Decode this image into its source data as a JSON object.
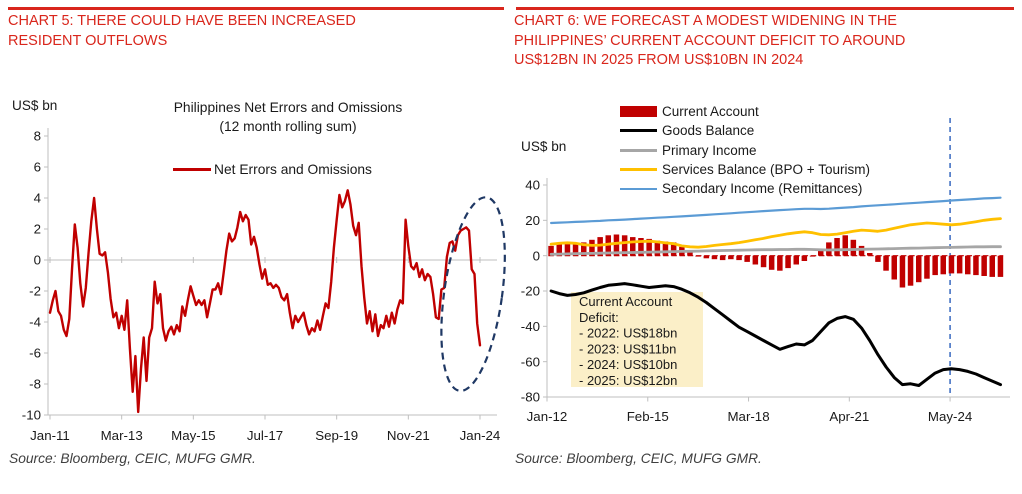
{
  "left_panel": {
    "title_lines": [
      "CHART 5: THERE COULD HAVE BEEN INCREASED",
      "RESIDENT OUTFLOWS"
    ],
    "source": "Source: Bloomberg, CEIC, MUFG GMR."
  },
  "right_panel": {
    "title_lines": [
      "CHART 6: WE FORECAST A MODEST WIDENING IN THE",
      "PHILIPPINES’ CURRENT ACCOUNT DEFICIT TO AROUND",
      "US$12BN IN 2025 FROM US$10BN IN 2024"
    ],
    "source": "Source: Bloomberg, CEIC, MUFG GMR."
  },
  "colors": {
    "heading_red": "#d9261c",
    "series_red": "#c00000",
    "black": "#000000",
    "gray": "#a6a6a6",
    "yellow": "#ffc000",
    "light_blue": "#5b9bd5",
    "divider_blue": "#4472c4",
    "navy_ellipse": "#1f3864",
    "axis_gray": "#bfbfbf",
    "note_bg": "#fbefc8"
  },
  "chart_data": [
    {
      "type": "line",
      "title": "Philippines Net Errors and Omissions",
      "subtitle": "(12 month rolling sum)",
      "unit_label": "US$ bn",
      "legend": [
        {
          "name": "Net Errors and Omissions",
          "color": "#c00000",
          "marker": "line"
        }
      ],
      "x_start": "Jan-11",
      "x_frequency": "monthly",
      "x_tick_labels": [
        "Jan-11",
        "Mar-13",
        "May-15",
        "Jul-17",
        "Sep-19",
        "Nov-21",
        "Jan-24"
      ],
      "x_tick_month_positions": [
        0,
        26,
        52,
        78,
        104,
        130,
        156
      ],
      "y_ticks": [
        8,
        6,
        4,
        2,
        0,
        -2,
        -4,
        -6,
        -8,
        -10
      ],
      "ylim": [
        -10,
        8
      ],
      "grid": "zero-line-only",
      "series": [
        {
          "name": "Net Errors and Omissions",
          "color": "#c00000",
          "values": [
            -3.4,
            -2.6,
            -2.0,
            -3.3,
            -3.6,
            -4.5,
            -4.9,
            -3.8,
            -0.5,
            2.3,
            0.8,
            -1.5,
            -3.0,
            -1.8,
            0.5,
            2.5,
            4.0,
            2.0,
            0.4,
            0.3,
            0.5,
            -0.8,
            -2.5,
            -3.7,
            -3.4,
            -4.4,
            -3.6,
            -4.5,
            -2.6,
            -5.7,
            -8.5,
            -6.2,
            -9.8,
            -7.0,
            -5.0,
            -7.8,
            -5.0,
            -4.4,
            -1.4,
            -2.8,
            -2.2,
            -4.4,
            -5.2,
            -4.6,
            -4.3,
            -4.8,
            -4.2,
            -4.6,
            -3.0,
            -3.6,
            -2.6,
            -1.7,
            -2.3,
            -2.9,
            -2.6,
            -2.9,
            -2.6,
            -3.7,
            -2.8,
            -1.9,
            -1.9,
            -1.5,
            -2.2,
            -0.8,
            0.6,
            1.7,
            1.2,
            1.4,
            2.1,
            3.1,
            2.5,
            2.9,
            2.6,
            1.0,
            1.5,
            0.8,
            -0.3,
            -1.2,
            -0.6,
            -1.6,
            -1.5,
            -1.8,
            -1.6,
            -1.8,
            -2.4,
            -2.6,
            -2.2,
            -3.4,
            -4.4,
            -3.6,
            -4.0,
            -3.7,
            -3.4,
            -4.2,
            -4.8,
            -4.4,
            -4.6,
            -3.9,
            -4.5,
            -3.6,
            -2.8,
            -3.1,
            -1.4,
            0.8,
            2.6,
            4.2,
            3.4,
            3.8,
            4.5,
            3.6,
            2.2,
            1.6,
            2.4,
            -0.4,
            -2.4,
            -4.1,
            -3.3,
            -4.6,
            -3.5,
            -4.9,
            -4.2,
            -4.4,
            -3.6,
            -4.3,
            -3.4,
            -4.1,
            -3.2,
            -2.6,
            -2.8,
            2.6,
            0.9,
            -0.4,
            -0.6,
            -0.2,
            -1.1,
            -0.6,
            -1.3,
            -0.9,
            -1.1,
            -2.2,
            -3.7,
            -3.8,
            -1.9,
            -1.8,
            0.2,
            1.1,
            1.2,
            0.6,
            1.6,
            1.9,
            2.0,
            2.1,
            1.9,
            -0.6,
            -0.9,
            -4.1,
            -5.5
          ]
        }
      ],
      "annotation_ellipse": {
        "meaning": "highlight of recent resident-outflow swing",
        "center_month": 153.5,
        "center_value": -2.2,
        "radius_months": 10.5,
        "radius_value": 6.3,
        "tilt_deg": 8,
        "color": "#1f3864"
      }
    },
    {
      "type": "combo",
      "unit_label": "US$ bn",
      "x_start": "Jan-12",
      "x_frequency": "quarterly",
      "x_tick_labels": [
        "Jan-12",
        "Feb-15",
        "Mar-18",
        "Apr-21",
        "May-24"
      ],
      "x_tick_month_positions": [
        0,
        37,
        74,
        111,
        148
      ],
      "x_month_span": 170,
      "y_ticks": [
        40,
        20,
        0,
        -20,
        -40,
        -60,
        -80
      ],
      "ylim": [
        -80,
        40
      ],
      "legend": [
        {
          "name": "Current Account",
          "color": "#c00000",
          "marker": "bar"
        },
        {
          "name": "Goods Balance",
          "color": "#000000",
          "marker": "line"
        },
        {
          "name": "Primary Income",
          "color": "#a6a6a6",
          "marker": "line"
        },
        {
          "name": "Services Balance (BPO + Tourism)",
          "color": "#ffc000",
          "marker": "line"
        },
        {
          "name": "Secondary Income (Remittances)",
          "color": "#5b9bd5",
          "marker": "thin-line"
        }
      ],
      "bar_series": {
        "name": "Current Account",
        "color": "#c00000",
        "values": [
          5.5,
          6.5,
          7.0,
          6.5,
          7.5,
          9.0,
          10.5,
          11.5,
          12.0,
          11.5,
          10.5,
          10.0,
          9.5,
          8.5,
          8.0,
          7.5,
          5.0,
          2.5,
          -0.5,
          -1.5,
          -2.0,
          -2.5,
          -2.0,
          -2.5,
          -3.5,
          -5.0,
          -6.5,
          -8.0,
          -8.5,
          -7.0,
          -5.0,
          -3.0,
          -0.5,
          4.0,
          7.5,
          10.0,
          11.5,
          9.0,
          5.5,
          1.5,
          -3.5,
          -8.5,
          -13.5,
          -18.0,
          -17.0,
          -15.0,
          -13.0,
          -11.0,
          -10.5,
          -10.0,
          -10.0,
          -10.5,
          -11.0,
          -11.5,
          -12.0,
          -12.0
        ]
      },
      "line_series": [
        {
          "name": "Goods Balance",
          "color": "#000000",
          "width": 3,
          "values": [
            -20,
            -21.5,
            -22.5,
            -22,
            -21,
            -19.5,
            -18,
            -16.8,
            -16.3,
            -15.8,
            -16.5,
            -17.3,
            -18,
            -17.5,
            -17,
            -17.5,
            -19,
            -21,
            -23.5,
            -26.5,
            -30,
            -33.5,
            -37,
            -40.5,
            -43,
            -45.5,
            -48,
            -50.5,
            -53,
            -51.5,
            -50,
            -50.5,
            -48,
            -43,
            -38,
            -35.5,
            -34.5,
            -36,
            -41,
            -48,
            -56,
            -63,
            -69,
            -73,
            -72.5,
            -73.5,
            -70,
            -66.5,
            -64.5,
            -64,
            -64.5,
            -65.5,
            -67,
            -69,
            -71,
            -73
          ]
        },
        {
          "name": "Primary Income",
          "color": "#a6a6a6",
          "width": 2.8,
          "values": [
            0.8,
            0.9,
            1.0,
            1.1,
            1.2,
            1.3,
            1.4,
            1.5,
            1.6,
            1.7,
            1.8,
            1.9,
            2.0,
            2.1,
            2.2,
            2.3,
            2.4,
            2.5,
            2.6,
            2.7,
            2.8,
            2.9,
            3.0,
            3.1,
            3.2,
            3.3,
            3.4,
            3.4,
            3.5,
            3.5,
            3.6,
            3.6,
            3.5,
            3.3,
            3.2,
            3.3,
            3.4,
            3.5,
            3.6,
            3.7,
            3.8,
            3.9,
            4.0,
            4.1,
            4.2,
            4.3,
            4.4,
            4.5,
            4.6,
            4.7,
            4.8,
            4.9,
            5.0,
            5.0,
            5.1,
            5.1
          ]
        },
        {
          "name": "Services Balance (BPO + Tourism)",
          "color": "#ffc000",
          "width": 2.8,
          "values": [
            6.5,
            7.0,
            7.3,
            7.0,
            6.2,
            5.8,
            6.0,
            6.5,
            7.0,
            7.4,
            7.8,
            8.0,
            8.2,
            7.8,
            7.2,
            6.8,
            5.5,
            5.0,
            4.8,
            5.2,
            5.8,
            6.3,
            6.8,
            7.4,
            8.2,
            9.0,
            9.8,
            10.8,
            11.5,
            12.4,
            13.0,
            13.5,
            13.0,
            12.0,
            11.8,
            12.2,
            13.0,
            13.8,
            14.5,
            14.2,
            13.8,
            14.5,
            15.5,
            16.5,
            17.5,
            18.0,
            18.5,
            18.2,
            17.8,
            17.5,
            17.8,
            18.5,
            19.2,
            20.0,
            20.6,
            21.0
          ]
        },
        {
          "name": "Secondary Income (Remittances)",
          "color": "#5b9bd5",
          "width": 2.2,
          "values": [
            18.5,
            18.7,
            18.9,
            19.1,
            19.3,
            19.5,
            19.7,
            20.0,
            20.2,
            20.4,
            20.7,
            21.0,
            21.2,
            21.5,
            21.7,
            22.0,
            22.2,
            22.5,
            22.8,
            23.1,
            23.4,
            23.7,
            24.0,
            24.3,
            24.6,
            24.9,
            25.2,
            25.5,
            25.8,
            26.0,
            26.3,
            26.5,
            26.5,
            26.4,
            26.6,
            26.9,
            27.2,
            27.5,
            27.9,
            28.2,
            28.5,
            28.8,
            29.1,
            29.4,
            29.7,
            30.0,
            30.3,
            30.6,
            30.9,
            31.2,
            31.5,
            31.8,
            32.1,
            32.4,
            32.6,
            32.8
          ]
        }
      ],
      "forecast_divider": {
        "month_position": 148,
        "color": "#4472c4",
        "style": "dashed"
      },
      "note_box": {
        "bg": "#fbefc8",
        "lines": [
          "Current Account",
          "Deficit:",
          "- 2022: US$18bn",
          "- 2023: US$11bn",
          "- 2024: US$10bn",
          "- 2025: US$12bn"
        ]
      }
    }
  ]
}
